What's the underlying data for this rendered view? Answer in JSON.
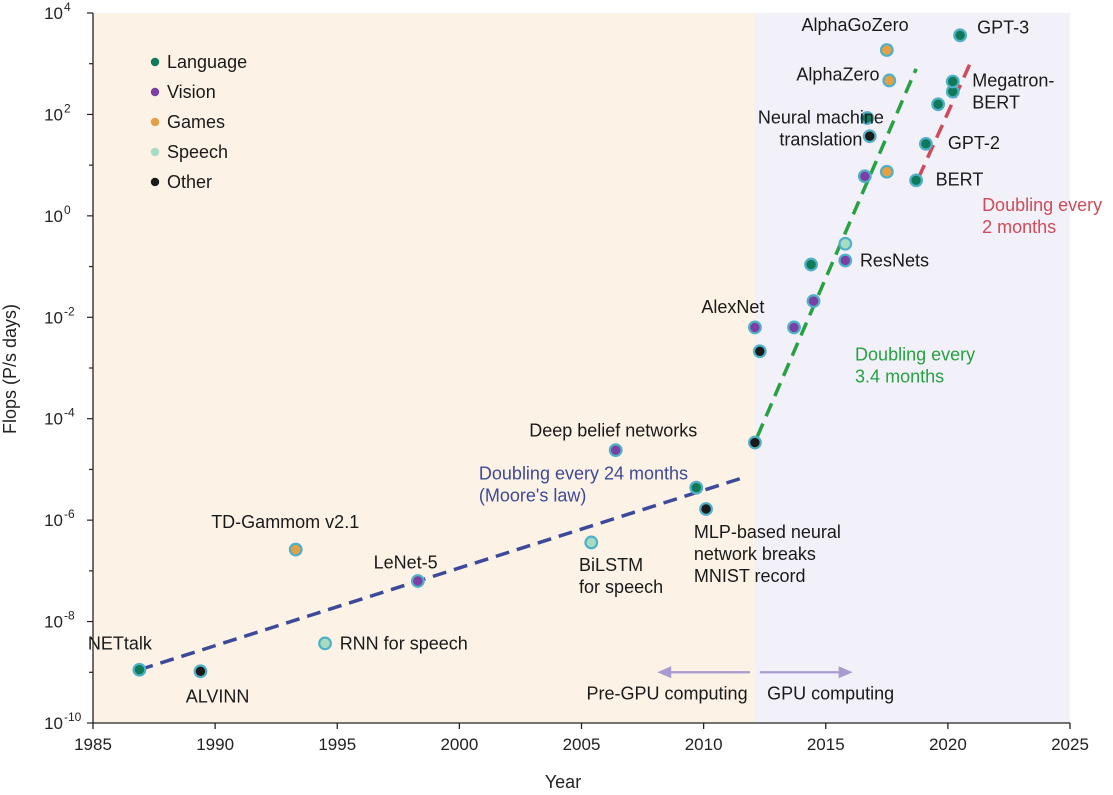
{
  "chart_data": {
    "type": "scatter",
    "xlabel": "Year",
    "ylabel": "Flops (P/s days)",
    "xlim": [
      1985,
      2025
    ],
    "ylim_log10": [
      -10,
      4
    ],
    "y_scale": "log",
    "grid": false,
    "legend_position": "top-left",
    "x_ticks": [
      "1985",
      "1990",
      "1995",
      "2000",
      "2005",
      "2010",
      "2015",
      "2020",
      "2025"
    ],
    "y_ticks": [
      {
        "base": "10",
        "exp": "-10",
        "log10": -10
      },
      {
        "base": "10",
        "exp": "-8",
        "log10": -8
      },
      {
        "base": "10",
        "exp": "-6",
        "log10": -6
      },
      {
        "base": "10",
        "exp": "-4",
        "log10": -4
      },
      {
        "base": "10",
        "exp": "-2",
        "log10": -2
      },
      {
        "base": "10",
        "exp": "0",
        "log10": 0
      },
      {
        "base": "10",
        "exp": "2",
        "log10": 2
      },
      {
        "base": "10",
        "exp": "4",
        "log10": 4
      }
    ],
    "regions": [
      {
        "label": "Pre-GPU computing",
        "x_from": 1985,
        "x_to": 2012.1,
        "color": "#fcf2e6"
      },
      {
        "label": "GPU computing",
        "x_from": 2012.1,
        "x_to": 2025,
        "color": "#f2f0f8"
      }
    ],
    "categories": [
      {
        "name": "Language",
        "color": "#0f7a5a"
      },
      {
        "name": "Vision",
        "color": "#7b3fa5"
      },
      {
        "name": "Games",
        "color": "#e4a043"
      },
      {
        "name": "Speech",
        "color": "#a7dcc3"
      },
      {
        "name": "Other",
        "color": "#1a1a1a"
      }
    ],
    "ring_color": "#4fb0c6",
    "points": [
      {
        "x": 1986.9,
        "log10_y": -8.95,
        "category": "Language"
      },
      {
        "x": 1989.4,
        "log10_y": -8.98,
        "category": "Other"
      },
      {
        "x": 1993.3,
        "log10_y": -6.58,
        "category": "Games"
      },
      {
        "x": 1994.5,
        "log10_y": -8.43,
        "category": "Speech"
      },
      {
        "x": 1998.3,
        "log10_y": -7.2,
        "category": "Vision"
      },
      {
        "x": 2005.4,
        "log10_y": -6.44,
        "category": "Speech"
      },
      {
        "x": 2006.4,
        "log10_y": -4.62,
        "category": "Vision"
      },
      {
        "x": 2009.7,
        "log10_y": -5.36,
        "category": "Language"
      },
      {
        "x": 2010.1,
        "log10_y": -5.78,
        "category": "Other"
      },
      {
        "x": 2012.1,
        "log10_y": -4.47,
        "category": "Other"
      },
      {
        "x": 2012.1,
        "log10_y": -2.2,
        "category": "Vision"
      },
      {
        "x": 2012.3,
        "log10_y": -2.67,
        "category": "Other"
      },
      {
        "x": 2013.7,
        "log10_y": -2.2,
        "category": "Vision"
      },
      {
        "x": 2014.5,
        "log10_y": -1.68,
        "category": "Vision"
      },
      {
        "x": 2014.4,
        "log10_y": -0.96,
        "category": "Language"
      },
      {
        "x": 2015.8,
        "log10_y": -0.88,
        "category": "Vision"
      },
      {
        "x": 2015.8,
        "log10_y": -0.55,
        "category": "Speech"
      },
      {
        "x": 2016.6,
        "log10_y": 0.78,
        "category": "Vision"
      },
      {
        "x": 2017.5,
        "log10_y": 0.87,
        "category": "Games"
      },
      {
        "x": 2016.7,
        "log10_y": 1.93,
        "category": "Language"
      },
      {
        "x": 2016.8,
        "log10_y": 1.57,
        "category": "Other"
      },
      {
        "x": 2017.6,
        "log10_y": 2.67,
        "category": "Games"
      },
      {
        "x": 2017.5,
        "log10_y": 3.27,
        "category": "Games"
      },
      {
        "x": 2018.7,
        "log10_y": 0.7,
        "category": "Language"
      },
      {
        "x": 2019.1,
        "log10_y": 1.42,
        "category": "Language"
      },
      {
        "x": 2019.6,
        "log10_y": 2.2,
        "category": "Language"
      },
      {
        "x": 2020.2,
        "log10_y": 2.45,
        "category": "Language"
      },
      {
        "x": 2020.2,
        "log10_y": 2.65,
        "category": "Language"
      },
      {
        "x": 2020.5,
        "log10_y": 3.56,
        "category": "Language"
      }
    ],
    "trends": [
      {
        "label_lines": [
          "Doubling every 24 months",
          "(Moore's law)"
        ],
        "color": "#3d4a9a",
        "from": [
          1986.9,
          -8.95
        ],
        "to": [
          2011.7,
          -5.15
        ],
        "label_at": [
          2000.8,
          -5.2
        ]
      },
      {
        "label_lines": [
          "Doubling every",
          "3.4 months"
        ],
        "color": "#27a143",
        "from": [
          2012.2,
          -4.35
        ],
        "to": [
          2018.7,
          2.9
        ],
        "label_at": [
          2016.2,
          -2.85
        ]
      },
      {
        "label_lines": [
          "Doubling every",
          "2 months"
        ],
        "color": "#cf4b59",
        "from": [
          2018.8,
          0.75
        ],
        "to": [
          2021.0,
          3.1
        ],
        "label_at": [
          2021.4,
          0.1
        ]
      }
    ],
    "annotations": [
      {
        "lines": [
          "NETtalk"
        ],
        "x": 1986.1,
        "log10_y": -8.55,
        "anchor": "middle"
      },
      {
        "lines": [
          "ALVINN"
        ],
        "x": 1990.1,
        "log10_y": -9.6,
        "anchor": "middle"
      },
      {
        "lines": [
          "TD-Gammom v2.1"
        ],
        "x": 1995.9,
        "log10_y": -6.15,
        "anchor": "end"
      },
      {
        "lines": [
          "RNN for speech"
        ],
        "x": 1995.1,
        "log10_y": -8.55,
        "anchor": "start"
      },
      {
        "lines": [
          "LeNet-5"
        ],
        "x": 1997.8,
        "log10_y": -6.95,
        "anchor": "middle"
      },
      {
        "lines": [
          "BiLSTM",
          "for speech"
        ],
        "x": 2004.9,
        "log10_y": -7.0,
        "anchor": "start"
      },
      {
        "lines": [
          "Deep belief networks"
        ],
        "x": 2006.3,
        "log10_y": -4.35,
        "anchor": "middle"
      },
      {
        "lines": [
          "MLP-based neural",
          "network breaks",
          "MNIST record"
        ],
        "x": 2009.6,
        "log10_y": -6.35,
        "anchor": "start"
      },
      {
        "lines": [
          "AlexNet"
        ],
        "x": 2011.2,
        "log10_y": -1.92,
        "anchor": "middle"
      },
      {
        "lines": [
          "ResNets"
        ],
        "x": 2016.4,
        "log10_y": -1.0,
        "anchor": "start"
      },
      {
        "lines": [
          "Neural machine",
          "translation"
        ],
        "x": 2014.8,
        "log10_y": 1.82,
        "anchor": "middle"
      },
      {
        "lines": [
          "AlphaZero"
        ],
        "x": 2017.2,
        "log10_y": 2.67,
        "anchor": "end"
      },
      {
        "lines": [
          "AlphaGoZero"
        ],
        "x": 2016.2,
        "log10_y": 3.65,
        "anchor": "middle"
      },
      {
        "lines": [
          "GPT-3"
        ],
        "x": 2021.2,
        "log10_y": 3.6,
        "anchor": "start"
      },
      {
        "lines": [
          "Megatron-",
          "BERT"
        ],
        "x": 2021.0,
        "log10_y": 2.55,
        "anchor": "start"
      },
      {
        "lines": [
          "GPT-2"
        ],
        "x": 2020.0,
        "log10_y": 1.32,
        "anchor": "start"
      },
      {
        "lines": [
          "BERT"
        ],
        "x": 2019.5,
        "log10_y": 0.6,
        "anchor": "start"
      }
    ],
    "era_labels": [
      {
        "text": "Pre-GPU computing",
        "x": 2011.8,
        "anchor": "end"
      },
      {
        "text": "GPU computing",
        "x": 2012.6,
        "anchor": "start"
      }
    ],
    "era_arrows": [
      {
        "from": 2011.9,
        "to": 2008.1
      },
      {
        "from": 2012.3,
        "to": 2016.1
      }
    ],
    "era_arrow_log10_y": -9.0,
    "era_arrow_color": "#a99bd0"
  }
}
